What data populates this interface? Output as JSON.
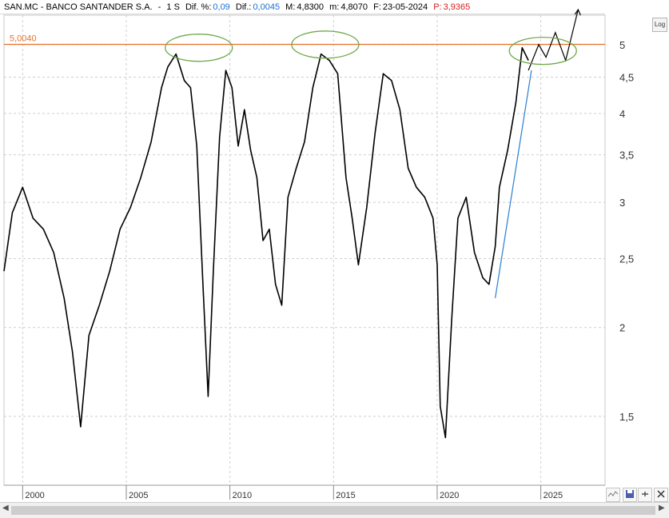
{
  "header": {
    "symbol": "SAN.MC - BANCO SANTANDER S.A.",
    "sep": "-",
    "timeframe": "1 S",
    "dif_pct_label": "Dif. %:",
    "dif_pct_value": "0,09",
    "dif_label": "Dif.:",
    "dif_value": "0,0045",
    "max_label": "M:",
    "max_value": "4,8300",
    "min_label": "m:",
    "min_value": "4,8070",
    "date_label": "F:",
    "date_value": "23-05-2024",
    "close_label": "P:",
    "close_value": "3,9365"
  },
  "toolbar": {
    "log_label": "Log"
  },
  "colors": {
    "price": "#000000",
    "resistance": "#e8702a",
    "trend": "#2a7fd0",
    "circle": "#6fa84a",
    "grid": "#cfcfcf"
  },
  "chart_data": {
    "type": "line",
    "log_scale": true,
    "grid": true,
    "ylim": [
      1.2,
      5.5
    ],
    "xlim": [
      1999.1,
      2028.1
    ],
    "y_ticks": [
      1.5,
      2,
      2.5,
      3,
      3.5,
      4,
      4.5,
      5
    ],
    "y_tick_labels": [
      "1,5",
      "2",
      "2,5",
      "3",
      "3,5",
      "4",
      "4,5",
      "5"
    ],
    "x_ticks": [
      2000,
      2005,
      2010,
      2015,
      2020,
      2025
    ],
    "x_tick_labels": [
      "2000",
      "2005",
      "2010",
      "2015",
      "2020",
      "2025"
    ],
    "resistance": {
      "value": 5.004,
      "label": "5,0040"
    },
    "series": [
      {
        "x": [
          1999.1,
          1999.5,
          2000.0,
          2000.5,
          2001.0,
          2001.5,
          2002.0,
          2002.4,
          2002.8,
          2003.2,
          2003.7,
          2004.2,
          2004.7,
          2005.2,
          2005.7,
          2006.2,
          2006.7,
          2007.0,
          2007.4,
          2007.8,
          2008.1,
          2008.4,
          2008.7,
          2008.95,
          2009.2,
          2009.5,
          2009.8,
          2010.1,
          2010.4,
          2010.7,
          2011.0,
          2011.3,
          2011.6,
          2011.9,
          2012.2,
          2012.5,
          2012.8,
          2013.2,
          2013.6,
          2014.0,
          2014.4,
          2014.8,
          2015.2,
          2015.6,
          2015.9,
          2016.2,
          2016.6,
          2017.0,
          2017.4,
          2017.8,
          2018.2,
          2018.6,
          2019.0,
          2019.4,
          2019.8,
          2020.0,
          2020.15,
          2020.4,
          2020.7,
          2021.0,
          2021.4,
          2021.8,
          2022.2,
          2022.5,
          2022.8,
          2023.0,
          2023.4,
          2023.8,
          2024.1,
          2024.4
        ],
        "values": [
          2.4,
          2.9,
          3.15,
          2.85,
          2.75,
          2.55,
          2.2,
          1.85,
          1.45,
          1.95,
          2.15,
          2.4,
          2.75,
          2.95,
          3.25,
          3.65,
          4.35,
          4.65,
          4.85,
          4.45,
          4.35,
          3.6,
          2.3,
          1.6,
          2.4,
          3.7,
          4.6,
          4.35,
          3.6,
          4.05,
          3.55,
          3.25,
          2.65,
          2.75,
          2.3,
          2.15,
          3.05,
          3.35,
          3.65,
          4.35,
          4.85,
          4.75,
          4.55,
          3.25,
          2.85,
          2.45,
          2.95,
          3.75,
          4.55,
          4.45,
          4.05,
          3.35,
          3.15,
          3.05,
          2.85,
          2.45,
          1.55,
          1.4,
          2.05,
          2.85,
          3.05,
          2.55,
          2.35,
          2.3,
          2.6,
          3.15,
          3.55,
          4.15,
          4.95,
          4.75
        ]
      },
      {
        "x": [
          2024.4,
          2024.9,
          2025.25,
          2025.7,
          2026.2,
          2026.8
        ],
        "values": [
          4.6,
          5.0,
          4.8,
          5.2,
          4.75,
          5.6
        ]
      },
      {
        "x": [
          2022.8,
          2024.55
        ],
        "values": [
          2.2,
          4.6
        ]
      }
    ]
  }
}
